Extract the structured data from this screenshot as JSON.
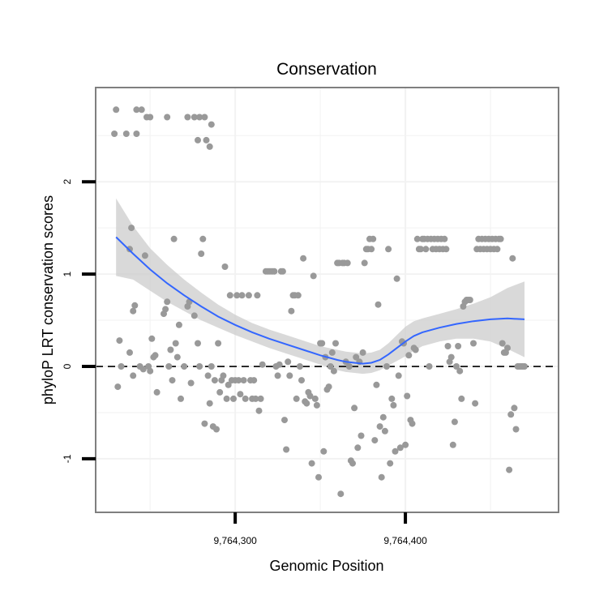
{
  "chart_data": {
    "type": "scatter",
    "title": "Conservation",
    "xlabel": "Genomic Position",
    "ylabel": "phyloP LRT conservation scores",
    "xlim": [
      9764218,
      9764490
    ],
    "ylim": [
      -1.58,
      3.02
    ],
    "x_ticks": [
      {
        "value": 9764300,
        "label": "9,764,300"
      },
      {
        "value": 9764400,
        "label": "9,764,400"
      }
    ],
    "y_ticks": [
      {
        "value": -1,
        "label": "-1"
      },
      {
        "value": 0,
        "label": "0"
      },
      {
        "value": 1,
        "label": "1"
      },
      {
        "value": 2,
        "label": "2"
      }
    ],
    "reference_line": {
      "y": 0,
      "style": "dashed"
    },
    "grid": true,
    "colors": {
      "points": "#999999",
      "smooth": "#3366ff",
      "band": "#cccccc",
      "panel_border": "#7f7f7f",
      "grid": "#f2f2f2"
    },
    "points": [
      [
        9764230,
        2.78
      ],
      [
        9764229,
        2.52
      ],
      [
        9764236,
        2.52
      ],
      [
        9764242,
        2.52
      ],
      [
        9764242,
        2.78
      ],
      [
        9764245,
        2.78
      ],
      [
        9764248,
        2.7
      ],
      [
        9764250,
        2.7
      ],
      [
        9764260,
        2.7
      ],
      [
        9764272,
        2.7
      ],
      [
        9764276,
        2.7
      ],
      [
        9764279,
        2.7
      ],
      [
        9764282,
        2.7
      ],
      [
        9764286,
        2.62
      ],
      [
        9764278,
        2.45
      ],
      [
        9764283,
        2.45
      ],
      [
        9764285,
        2.38
      ],
      [
        9764232,
        0.28
      ],
      [
        9764231,
        -0.22
      ],
      [
        9764233,
        0.0
      ],
      [
        9764238,
        1.27
      ],
      [
        9764239,
        1.5
      ],
      [
        9764240,
        0.6
      ],
      [
        9764241,
        0.66
      ],
      [
        9764238,
        0.15
      ],
      [
        9764240,
        -0.1
      ],
      [
        9764244,
        0.0
      ],
      [
        9764246,
        -0.03
      ],
      [
        9764247,
        1.2
      ],
      [
        9764249,
        0.0
      ],
      [
        9764250,
        -0.05
      ],
      [
        9764251,
        0.3
      ],
      [
        9764252,
        0.1
      ],
      [
        9764253,
        0.12
      ],
      [
        9764254,
        -0.28
      ],
      [
        9764258,
        0.57
      ],
      [
        9764259,
        0.62
      ],
      [
        9764260,
        0.7
      ],
      [
        9764261,
        0.0
      ],
      [
        9764262,
        0.18
      ],
      [
        9764263,
        -0.15
      ],
      [
        9764264,
        1.38
      ],
      [
        9764265,
        0.25
      ],
      [
        9764266,
        0.1
      ],
      [
        9764267,
        0.45
      ],
      [
        9764268,
        -0.35
      ],
      [
        9764270,
        0.0
      ],
      [
        9764272,
        0.65
      ],
      [
        9764273,
        0.7
      ],
      [
        9764274,
        -0.18
      ],
      [
        9764276,
        0.55
      ],
      [
        9764278,
        0.25
      ],
      [
        9764279,
        0.0
      ],
      [
        9764280,
        1.22
      ],
      [
        9764281,
        1.38
      ],
      [
        9764282,
        -0.62
      ],
      [
        9764284,
        -0.1
      ],
      [
        9764285,
        -0.4
      ],
      [
        9764286,
        0.0
      ],
      [
        9764287,
        -0.65
      ],
      [
        9764288,
        -0.15
      ],
      [
        9764289,
        -0.68
      ],
      [
        9764290,
        0.25
      ],
      [
        9764291,
        -0.28
      ],
      [
        9764292,
        -0.15
      ],
      [
        9764293,
        -0.1
      ],
      [
        9764294,
        1.08
      ],
      [
        9764295,
        -0.35
      ],
      [
        9764296,
        -0.2
      ],
      [
        9764297,
        0.77
      ],
      [
        9764298,
        -0.15
      ],
      [
        9764299,
        -0.35
      ],
      [
        9764300,
        -0.15
      ],
      [
        9764301,
        0.77
      ],
      [
        9764302,
        -0.15
      ],
      [
        9764303,
        -0.3
      ],
      [
        9764304,
        0.77
      ],
      [
        9764305,
        -0.15
      ],
      [
        9764306,
        -0.35
      ],
      [
        9764308,
        0.77
      ],
      [
        9764309,
        -0.15
      ],
      [
        9764310,
        -0.35
      ],
      [
        9764311,
        -0.15
      ],
      [
        9764312,
        -0.35
      ],
      [
        9764313,
        0.77
      ],
      [
        9764314,
        -0.48
      ],
      [
        9764315,
        -0.35
      ],
      [
        9764316,
        0.02
      ],
      [
        9764318,
        1.03
      ],
      [
        9764319,
        1.03
      ],
      [
        9764320,
        1.03
      ],
      [
        9764321,
        1.03
      ],
      [
        9764322,
        1.03
      ],
      [
        9764323,
        1.03
      ],
      [
        9764324,
        0.0
      ],
      [
        9764325,
        -0.1
      ],
      [
        9764326,
        0.02
      ],
      [
        9764327,
        1.03
      ],
      [
        9764328,
        1.03
      ],
      [
        9764329,
        -0.58
      ],
      [
        9764330,
        -0.9
      ],
      [
        9764331,
        0.05
      ],
      [
        9764332,
        -0.1
      ],
      [
        9764333,
        0.6
      ],
      [
        9764334,
        0.77
      ],
      [
        9764335,
        0.77
      ],
      [
        9764336,
        -0.35
      ],
      [
        9764337,
        0.77
      ],
      [
        9764338,
        0.0
      ],
      [
        9764339,
        -0.15
      ],
      [
        9764340,
        1.17
      ],
      [
        9764341,
        -0.38
      ],
      [
        9764342,
        -0.4
      ],
      [
        9764343,
        -0.28
      ],
      [
        9764344,
        -0.32
      ],
      [
        9764345,
        -1.05
      ],
      [
        9764346,
        0.98
      ],
      [
        9764347,
        -0.35
      ],
      [
        9764348,
        -0.42
      ],
      [
        9764349,
        -1.2
      ],
      [
        9764350,
        0.25
      ],
      [
        9764351,
        0.25
      ],
      [
        9764352,
        -0.92
      ],
      [
        9764353,
        0.1
      ],
      [
        9764354,
        -0.25
      ],
      [
        9764355,
        -0.22
      ],
      [
        9764356,
        0.0
      ],
      [
        9764357,
        0.15
      ],
      [
        9764358,
        -0.05
      ],
      [
        9764359,
        0.25
      ],
      [
        9764360,
        1.12
      ],
      [
        9764361,
        1.12
      ],
      [
        9764362,
        -1.38
      ],
      [
        9764363,
        1.12
      ],
      [
        9764364,
        1.12
      ],
      [
        9764365,
        0.05
      ],
      [
        9764366,
        1.12
      ],
      [
        9764367,
        0.0
      ],
      [
        9764368,
        -1.02
      ],
      [
        9764369,
        -1.05
      ],
      [
        9764370,
        -0.45
      ],
      [
        9764371,
        0.1
      ],
      [
        9764372,
        -0.88
      ],
      [
        9764373,
        0.05
      ],
      [
        9764374,
        -0.75
      ],
      [
        9764375,
        0.15
      ],
      [
        9764376,
        1.12
      ],
      [
        9764377,
        1.27
      ],
      [
        9764378,
        1.27
      ],
      [
        9764379,
        1.38
      ],
      [
        9764380,
        1.27
      ],
      [
        9764381,
        1.38
      ],
      [
        9764382,
        -0.8
      ],
      [
        9764383,
        -0.2
      ],
      [
        9764384,
        0.67
      ],
      [
        9764385,
        -0.65
      ],
      [
        9764386,
        -1.2
      ],
      [
        9764387,
        -0.55
      ],
      [
        9764388,
        -0.7
      ],
      [
        9764389,
        0.0
      ],
      [
        9764390,
        1.27
      ],
      [
        9764391,
        -1.05
      ],
      [
        9764392,
        -0.35
      ],
      [
        9764393,
        -0.42
      ],
      [
        9764394,
        -0.92
      ],
      [
        9764395,
        0.95
      ],
      [
        9764396,
        -0.1
      ],
      [
        9764397,
        -0.88
      ],
      [
        9764398,
        0.27
      ],
      [
        9764399,
        0.25
      ],
      [
        9764400,
        -0.85
      ],
      [
        9764401,
        -0.32
      ],
      [
        9764402,
        0.12
      ],
      [
        9764403,
        -0.58
      ],
      [
        9764404,
        -0.62
      ],
      [
        9764405,
        0.2
      ],
      [
        9764406,
        0.18
      ],
      [
        9764407,
        1.38
      ],
      [
        9764408,
        1.27
      ],
      [
        9764409,
        1.27
      ],
      [
        9764410,
        1.38
      ],
      [
        9764411,
        1.38
      ],
      [
        9764412,
        1.27
      ],
      [
        9764413,
        1.38
      ],
      [
        9764414,
        0.0
      ],
      [
        9764415,
        1.38
      ],
      [
        9764416,
        1.27
      ],
      [
        9764417,
        1.38
      ],
      [
        9764418,
        1.27
      ],
      [
        9764419,
        1.38
      ],
      [
        9764420,
        1.27
      ],
      [
        9764421,
        1.38
      ],
      [
        9764422,
        1.27
      ],
      [
        9764423,
        1.38
      ],
      [
        9764424,
        1.27
      ],
      [
        9764425,
        0.22
      ],
      [
        9764426,
        0.05
      ],
      [
        9764427,
        0.1
      ],
      [
        9764428,
        -0.85
      ],
      [
        9764429,
        -0.6
      ],
      [
        9764430,
        0.0
      ],
      [
        9764431,
        0.22
      ],
      [
        9764432,
        -0.05
      ],
      [
        9764433,
        -0.35
      ],
      [
        9764434,
        0.65
      ],
      [
        9764435,
        0.7
      ],
      [
        9764436,
        0.72
      ],
      [
        9764437,
        0.72
      ],
      [
        9764438,
        0.72
      ],
      [
        9764440,
        0.25
      ],
      [
        9764441,
        -0.4
      ],
      [
        9764442,
        1.27
      ],
      [
        9764443,
        1.38
      ],
      [
        9764444,
        1.27
      ],
      [
        9764445,
        1.38
      ],
      [
        9764446,
        1.27
      ],
      [
        9764447,
        1.38
      ],
      [
        9764448,
        1.27
      ],
      [
        9764449,
        1.38
      ],
      [
        9764450,
        1.27
      ],
      [
        9764451,
        1.38
      ],
      [
        9764452,
        1.27
      ],
      [
        9764453,
        1.38
      ],
      [
        9764454,
        1.27
      ],
      [
        9764455,
        1.38
      ],
      [
        9764456,
        1.38
      ],
      [
        9764457,
        0.25
      ],
      [
        9764458,
        0.15
      ],
      [
        9764459,
        0.15
      ],
      [
        9764460,
        0.2
      ],
      [
        9764461,
        -1.12
      ],
      [
        9764462,
        -0.52
      ],
      [
        9764463,
        1.17
      ],
      [
        9764464,
        -0.45
      ],
      [
        9764465,
        -0.68
      ],
      [
        9764466,
        0.0
      ],
      [
        9764467,
        0.0
      ],
      [
        9764468,
        0.0
      ],
      [
        9764469,
        0.0
      ],
      [
        9764470,
        0.0
      ]
    ],
    "smooth": {
      "x": [
        9764230,
        9764240,
        9764250,
        9764260,
        9764270,
        9764280,
        9764290,
        9764300,
        9764310,
        9764320,
        9764330,
        9764340,
        9764350,
        9764360,
        9764365,
        9764370,
        9764375,
        9764380,
        9764385,
        9764390,
        9764395,
        9764400,
        9764405,
        9764410,
        9764420,
        9764430,
        9764440,
        9764450,
        9764460,
        9764470
      ],
      "y": [
        1.4,
        1.22,
        1.05,
        0.9,
        0.77,
        0.65,
        0.54,
        0.45,
        0.37,
        0.3,
        0.24,
        0.18,
        0.12,
        0.07,
        0.05,
        0.04,
        0.03,
        0.04,
        0.07,
        0.13,
        0.2,
        0.27,
        0.33,
        0.37,
        0.42,
        0.46,
        0.49,
        0.51,
        0.52,
        0.51
      ],
      "lower": [
        0.98,
        0.94,
        0.82,
        0.7,
        0.6,
        0.5,
        0.42,
        0.34,
        0.27,
        0.2,
        0.14,
        0.08,
        0.02,
        -0.04,
        -0.06,
        -0.07,
        -0.08,
        -0.07,
        -0.04,
        0.01,
        0.06,
        0.11,
        0.17,
        0.22,
        0.27,
        0.3,
        0.3,
        0.27,
        0.19,
        0.1
      ],
      "upper": [
        1.82,
        1.52,
        1.28,
        1.1,
        0.94,
        0.8,
        0.67,
        0.56,
        0.47,
        0.4,
        0.34,
        0.28,
        0.22,
        0.18,
        0.16,
        0.15,
        0.14,
        0.15,
        0.18,
        0.25,
        0.34,
        0.43,
        0.49,
        0.52,
        0.57,
        0.62,
        0.68,
        0.75,
        0.85,
        0.92
      ]
    }
  }
}
